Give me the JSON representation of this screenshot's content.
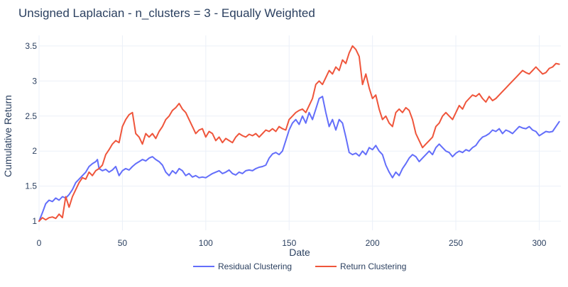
{
  "chart_data": {
    "type": "line",
    "title": "Unsigned Laplacian - n_clusters = 3 - Equally Weighted",
    "xlabel": "Date",
    "ylabel": "Cumulative Return",
    "xlim": [
      0,
      313
    ],
    "ylim": [
      0.87,
      3.65
    ],
    "x_ticks": [
      0,
      50,
      100,
      150,
      200,
      250,
      300
    ],
    "x_tick_labels": [
      "0",
      "50",
      "100",
      "150",
      "200",
      "250",
      "300"
    ],
    "y_ticks": [
      1,
      1.5,
      2,
      2.5,
      3,
      3.5
    ],
    "y_tick_labels": [
      "1",
      "1.5",
      "2",
      "2.5",
      "3",
      "3.5"
    ],
    "grid": true,
    "legend_position": "bottom-center",
    "series": [
      {
        "name": "Residual Clustering",
        "color": "#636efa",
        "points": [
          [
            0,
            1.0
          ],
          [
            2,
            1.12
          ],
          [
            4,
            1.25
          ],
          [
            6,
            1.3
          ],
          [
            8,
            1.28
          ],
          [
            10,
            1.33
          ],
          [
            12,
            1.3
          ],
          [
            14,
            1.35
          ],
          [
            16,
            1.33
          ],
          [
            18,
            1.38
          ],
          [
            20,
            1.45
          ],
          [
            22,
            1.55
          ],
          [
            24,
            1.6
          ],
          [
            26,
            1.65
          ],
          [
            28,
            1.7
          ],
          [
            30,
            1.78
          ],
          [
            32,
            1.82
          ],
          [
            34,
            1.85
          ],
          [
            35,
            1.88
          ],
          [
            36,
            1.75
          ],
          [
            38,
            1.72
          ],
          [
            40,
            1.74
          ],
          [
            42,
            1.7
          ],
          [
            44,
            1.73
          ],
          [
            46,
            1.78
          ],
          [
            48,
            1.65
          ],
          [
            50,
            1.72
          ],
          [
            52,
            1.75
          ],
          [
            54,
            1.73
          ],
          [
            56,
            1.78
          ],
          [
            58,
            1.82
          ],
          [
            60,
            1.85
          ],
          [
            62,
            1.88
          ],
          [
            64,
            1.86
          ],
          [
            66,
            1.9
          ],
          [
            68,
            1.92
          ],
          [
            70,
            1.88
          ],
          [
            72,
            1.85
          ],
          [
            74,
            1.8
          ],
          [
            76,
            1.7
          ],
          [
            78,
            1.65
          ],
          [
            80,
            1.72
          ],
          [
            82,
            1.68
          ],
          [
            84,
            1.75
          ],
          [
            86,
            1.72
          ],
          [
            88,
            1.65
          ],
          [
            90,
            1.68
          ],
          [
            92,
            1.63
          ],
          [
            94,
            1.65
          ],
          [
            96,
            1.62
          ],
          [
            98,
            1.63
          ],
          [
            100,
            1.62
          ],
          [
            102,
            1.65
          ],
          [
            104,
            1.68
          ],
          [
            106,
            1.7
          ],
          [
            108,
            1.72
          ],
          [
            110,
            1.68
          ],
          [
            112,
            1.7
          ],
          [
            114,
            1.73
          ],
          [
            116,
            1.68
          ],
          [
            118,
            1.66
          ],
          [
            120,
            1.7
          ],
          [
            122,
            1.68
          ],
          [
            124,
            1.72
          ],
          [
            126,
            1.73
          ],
          [
            128,
            1.72
          ],
          [
            130,
            1.75
          ],
          [
            132,
            1.77
          ],
          [
            134,
            1.78
          ],
          [
            136,
            1.8
          ],
          [
            138,
            1.9
          ],
          [
            140,
            1.96
          ],
          [
            142,
            1.98
          ],
          [
            144,
            1.95
          ],
          [
            146,
            2.0
          ],
          [
            148,
            2.15
          ],
          [
            150,
            2.3
          ],
          [
            152,
            2.4
          ],
          [
            154,
            2.45
          ],
          [
            156,
            2.38
          ],
          [
            158,
            2.5
          ],
          [
            160,
            2.4
          ],
          [
            162,
            2.55
          ],
          [
            164,
            2.45
          ],
          [
            166,
            2.6
          ],
          [
            168,
            2.75
          ],
          [
            170,
            2.78
          ],
          [
            172,
            2.55
          ],
          [
            174,
            2.35
          ],
          [
            176,
            2.45
          ],
          [
            178,
            2.3
          ],
          [
            180,
            2.45
          ],
          [
            182,
            2.4
          ],
          [
            184,
            2.2
          ],
          [
            186,
            1.98
          ],
          [
            188,
            1.95
          ],
          [
            190,
            1.97
          ],
          [
            192,
            1.93
          ],
          [
            194,
            2.0
          ],
          [
            196,
            1.95
          ],
          [
            198,
            2.05
          ],
          [
            200,
            2.02
          ],
          [
            202,
            2.08
          ],
          [
            204,
            2.0
          ],
          [
            206,
            1.95
          ],
          [
            208,
            1.8
          ],
          [
            210,
            1.7
          ],
          [
            212,
            1.62
          ],
          [
            214,
            1.7
          ],
          [
            216,
            1.65
          ],
          [
            218,
            1.75
          ],
          [
            220,
            1.82
          ],
          [
            222,
            1.9
          ],
          [
            224,
            1.95
          ],
          [
            226,
            1.92
          ],
          [
            228,
            1.85
          ],
          [
            230,
            1.9
          ],
          [
            232,
            1.95
          ],
          [
            234,
            2.0
          ],
          [
            236,
            1.95
          ],
          [
            238,
            2.05
          ],
          [
            240,
            2.1
          ],
          [
            242,
            2.05
          ],
          [
            244,
            2.0
          ],
          [
            246,
            1.98
          ],
          [
            248,
            1.92
          ],
          [
            250,
            1.97
          ],
          [
            252,
            2.0
          ],
          [
            254,
            1.98
          ],
          [
            256,
            2.02
          ],
          [
            258,
            2.0
          ],
          [
            260,
            2.05
          ],
          [
            262,
            2.08
          ],
          [
            264,
            2.15
          ],
          [
            266,
            2.2
          ],
          [
            268,
            2.22
          ],
          [
            270,
            2.25
          ],
          [
            272,
            2.3
          ],
          [
            274,
            2.28
          ],
          [
            276,
            2.32
          ],
          [
            278,
            2.25
          ],
          [
            280,
            2.3
          ],
          [
            282,
            2.28
          ],
          [
            284,
            2.25
          ],
          [
            286,
            2.3
          ],
          [
            288,
            2.35
          ],
          [
            290,
            2.33
          ],
          [
            292,
            2.32
          ],
          [
            294,
            2.35
          ],
          [
            296,
            2.3
          ],
          [
            298,
            2.28
          ],
          [
            300,
            2.22
          ],
          [
            302,
            2.25
          ],
          [
            304,
            2.28
          ],
          [
            306,
            2.27
          ],
          [
            308,
            2.28
          ],
          [
            310,
            2.35
          ],
          [
            312,
            2.42
          ]
        ]
      },
      {
        "name": "Return Clustering",
        "color": "#ef553b",
        "points": [
          [
            0,
            1.0
          ],
          [
            2,
            1.05
          ],
          [
            4,
            1.02
          ],
          [
            6,
            1.05
          ],
          [
            8,
            1.06
          ],
          [
            10,
            1.04
          ],
          [
            12,
            1.1
          ],
          [
            14,
            1.05
          ],
          [
            16,
            1.35
          ],
          [
            18,
            1.2
          ],
          [
            20,
            1.35
          ],
          [
            22,
            1.45
          ],
          [
            24,
            1.55
          ],
          [
            26,
            1.62
          ],
          [
            28,
            1.6
          ],
          [
            30,
            1.7
          ],
          [
            32,
            1.65
          ],
          [
            34,
            1.72
          ],
          [
            36,
            1.75
          ],
          [
            38,
            1.8
          ],
          [
            40,
            1.95
          ],
          [
            42,
            2.02
          ],
          [
            44,
            2.1
          ],
          [
            46,
            2.15
          ],
          [
            48,
            2.12
          ],
          [
            50,
            2.35
          ],
          [
            52,
            2.45
          ],
          [
            54,
            2.52
          ],
          [
            56,
            2.55
          ],
          [
            58,
            2.25
          ],
          [
            60,
            2.2
          ],
          [
            62,
            2.1
          ],
          [
            64,
            2.25
          ],
          [
            66,
            2.2
          ],
          [
            68,
            2.25
          ],
          [
            70,
            2.18
          ],
          [
            72,
            2.28
          ],
          [
            74,
            2.35
          ],
          [
            76,
            2.45
          ],
          [
            78,
            2.5
          ],
          [
            80,
            2.58
          ],
          [
            82,
            2.62
          ],
          [
            84,
            2.68
          ],
          [
            86,
            2.6
          ],
          [
            88,
            2.55
          ],
          [
            90,
            2.45
          ],
          [
            92,
            2.35
          ],
          [
            94,
            2.25
          ],
          [
            96,
            2.3
          ],
          [
            98,
            2.32
          ],
          [
            100,
            2.2
          ],
          [
            102,
            2.28
          ],
          [
            104,
            2.25
          ],
          [
            106,
            2.15
          ],
          [
            108,
            2.2
          ],
          [
            110,
            2.12
          ],
          [
            112,
            2.18
          ],
          [
            114,
            2.15
          ],
          [
            116,
            2.12
          ],
          [
            118,
            2.2
          ],
          [
            120,
            2.25
          ],
          [
            122,
            2.22
          ],
          [
            124,
            2.2
          ],
          [
            126,
            2.24
          ],
          [
            128,
            2.22
          ],
          [
            130,
            2.25
          ],
          [
            132,
            2.2
          ],
          [
            134,
            2.25
          ],
          [
            136,
            2.3
          ],
          [
            138,
            2.28
          ],
          [
            140,
            2.32
          ],
          [
            142,
            2.28
          ],
          [
            144,
            2.35
          ],
          [
            146,
            2.32
          ],
          [
            148,
            2.3
          ],
          [
            150,
            2.45
          ],
          [
            152,
            2.5
          ],
          [
            154,
            2.55
          ],
          [
            156,
            2.58
          ],
          [
            158,
            2.6
          ],
          [
            160,
            2.55
          ],
          [
            162,
            2.65
          ],
          [
            164,
            2.75
          ],
          [
            166,
            2.95
          ],
          [
            168,
            3.0
          ],
          [
            170,
            2.95
          ],
          [
            172,
            3.05
          ],
          [
            174,
            3.15
          ],
          [
            176,
            3.1
          ],
          [
            178,
            3.2
          ],
          [
            180,
            3.15
          ],
          [
            182,
            3.3
          ],
          [
            184,
            3.25
          ],
          [
            186,
            3.4
          ],
          [
            188,
            3.5
          ],
          [
            190,
            3.45
          ],
          [
            192,
            3.35
          ],
          [
            194,
            2.95
          ],
          [
            196,
            3.1
          ],
          [
            198,
            2.9
          ],
          [
            200,
            2.75
          ],
          [
            202,
            2.8
          ],
          [
            204,
            2.6
          ],
          [
            206,
            2.45
          ],
          [
            208,
            2.5
          ],
          [
            210,
            2.4
          ],
          [
            212,
            2.35
          ],
          [
            214,
            2.55
          ],
          [
            216,
            2.6
          ],
          [
            218,
            2.55
          ],
          [
            220,
            2.62
          ],
          [
            222,
            2.58
          ],
          [
            224,
            2.45
          ],
          [
            226,
            2.25
          ],
          [
            228,
            2.15
          ],
          [
            230,
            2.05
          ],
          [
            232,
            2.1
          ],
          [
            234,
            2.15
          ],
          [
            236,
            2.2
          ],
          [
            238,
            2.35
          ],
          [
            240,
            2.4
          ],
          [
            242,
            2.5
          ],
          [
            244,
            2.55
          ],
          [
            246,
            2.5
          ],
          [
            248,
            2.45
          ],
          [
            250,
            2.55
          ],
          [
            252,
            2.65
          ],
          [
            254,
            2.6
          ],
          [
            256,
            2.7
          ],
          [
            258,
            2.75
          ],
          [
            260,
            2.8
          ],
          [
            262,
            2.78
          ],
          [
            264,
            2.82
          ],
          [
            266,
            2.75
          ],
          [
            268,
            2.7
          ],
          [
            270,
            2.78
          ],
          [
            272,
            2.72
          ],
          [
            274,
            2.75
          ],
          [
            276,
            2.8
          ],
          [
            278,
            2.85
          ],
          [
            280,
            2.9
          ],
          [
            282,
            2.95
          ],
          [
            284,
            3.0
          ],
          [
            286,
            3.05
          ],
          [
            288,
            3.1
          ],
          [
            290,
            3.15
          ],
          [
            292,
            3.12
          ],
          [
            294,
            3.1
          ],
          [
            296,
            3.15
          ],
          [
            298,
            3.2
          ],
          [
            300,
            3.15
          ],
          [
            302,
            3.1
          ],
          [
            304,
            3.12
          ],
          [
            306,
            3.18
          ],
          [
            308,
            3.2
          ],
          [
            310,
            3.25
          ],
          [
            312,
            3.24
          ]
        ]
      }
    ]
  }
}
